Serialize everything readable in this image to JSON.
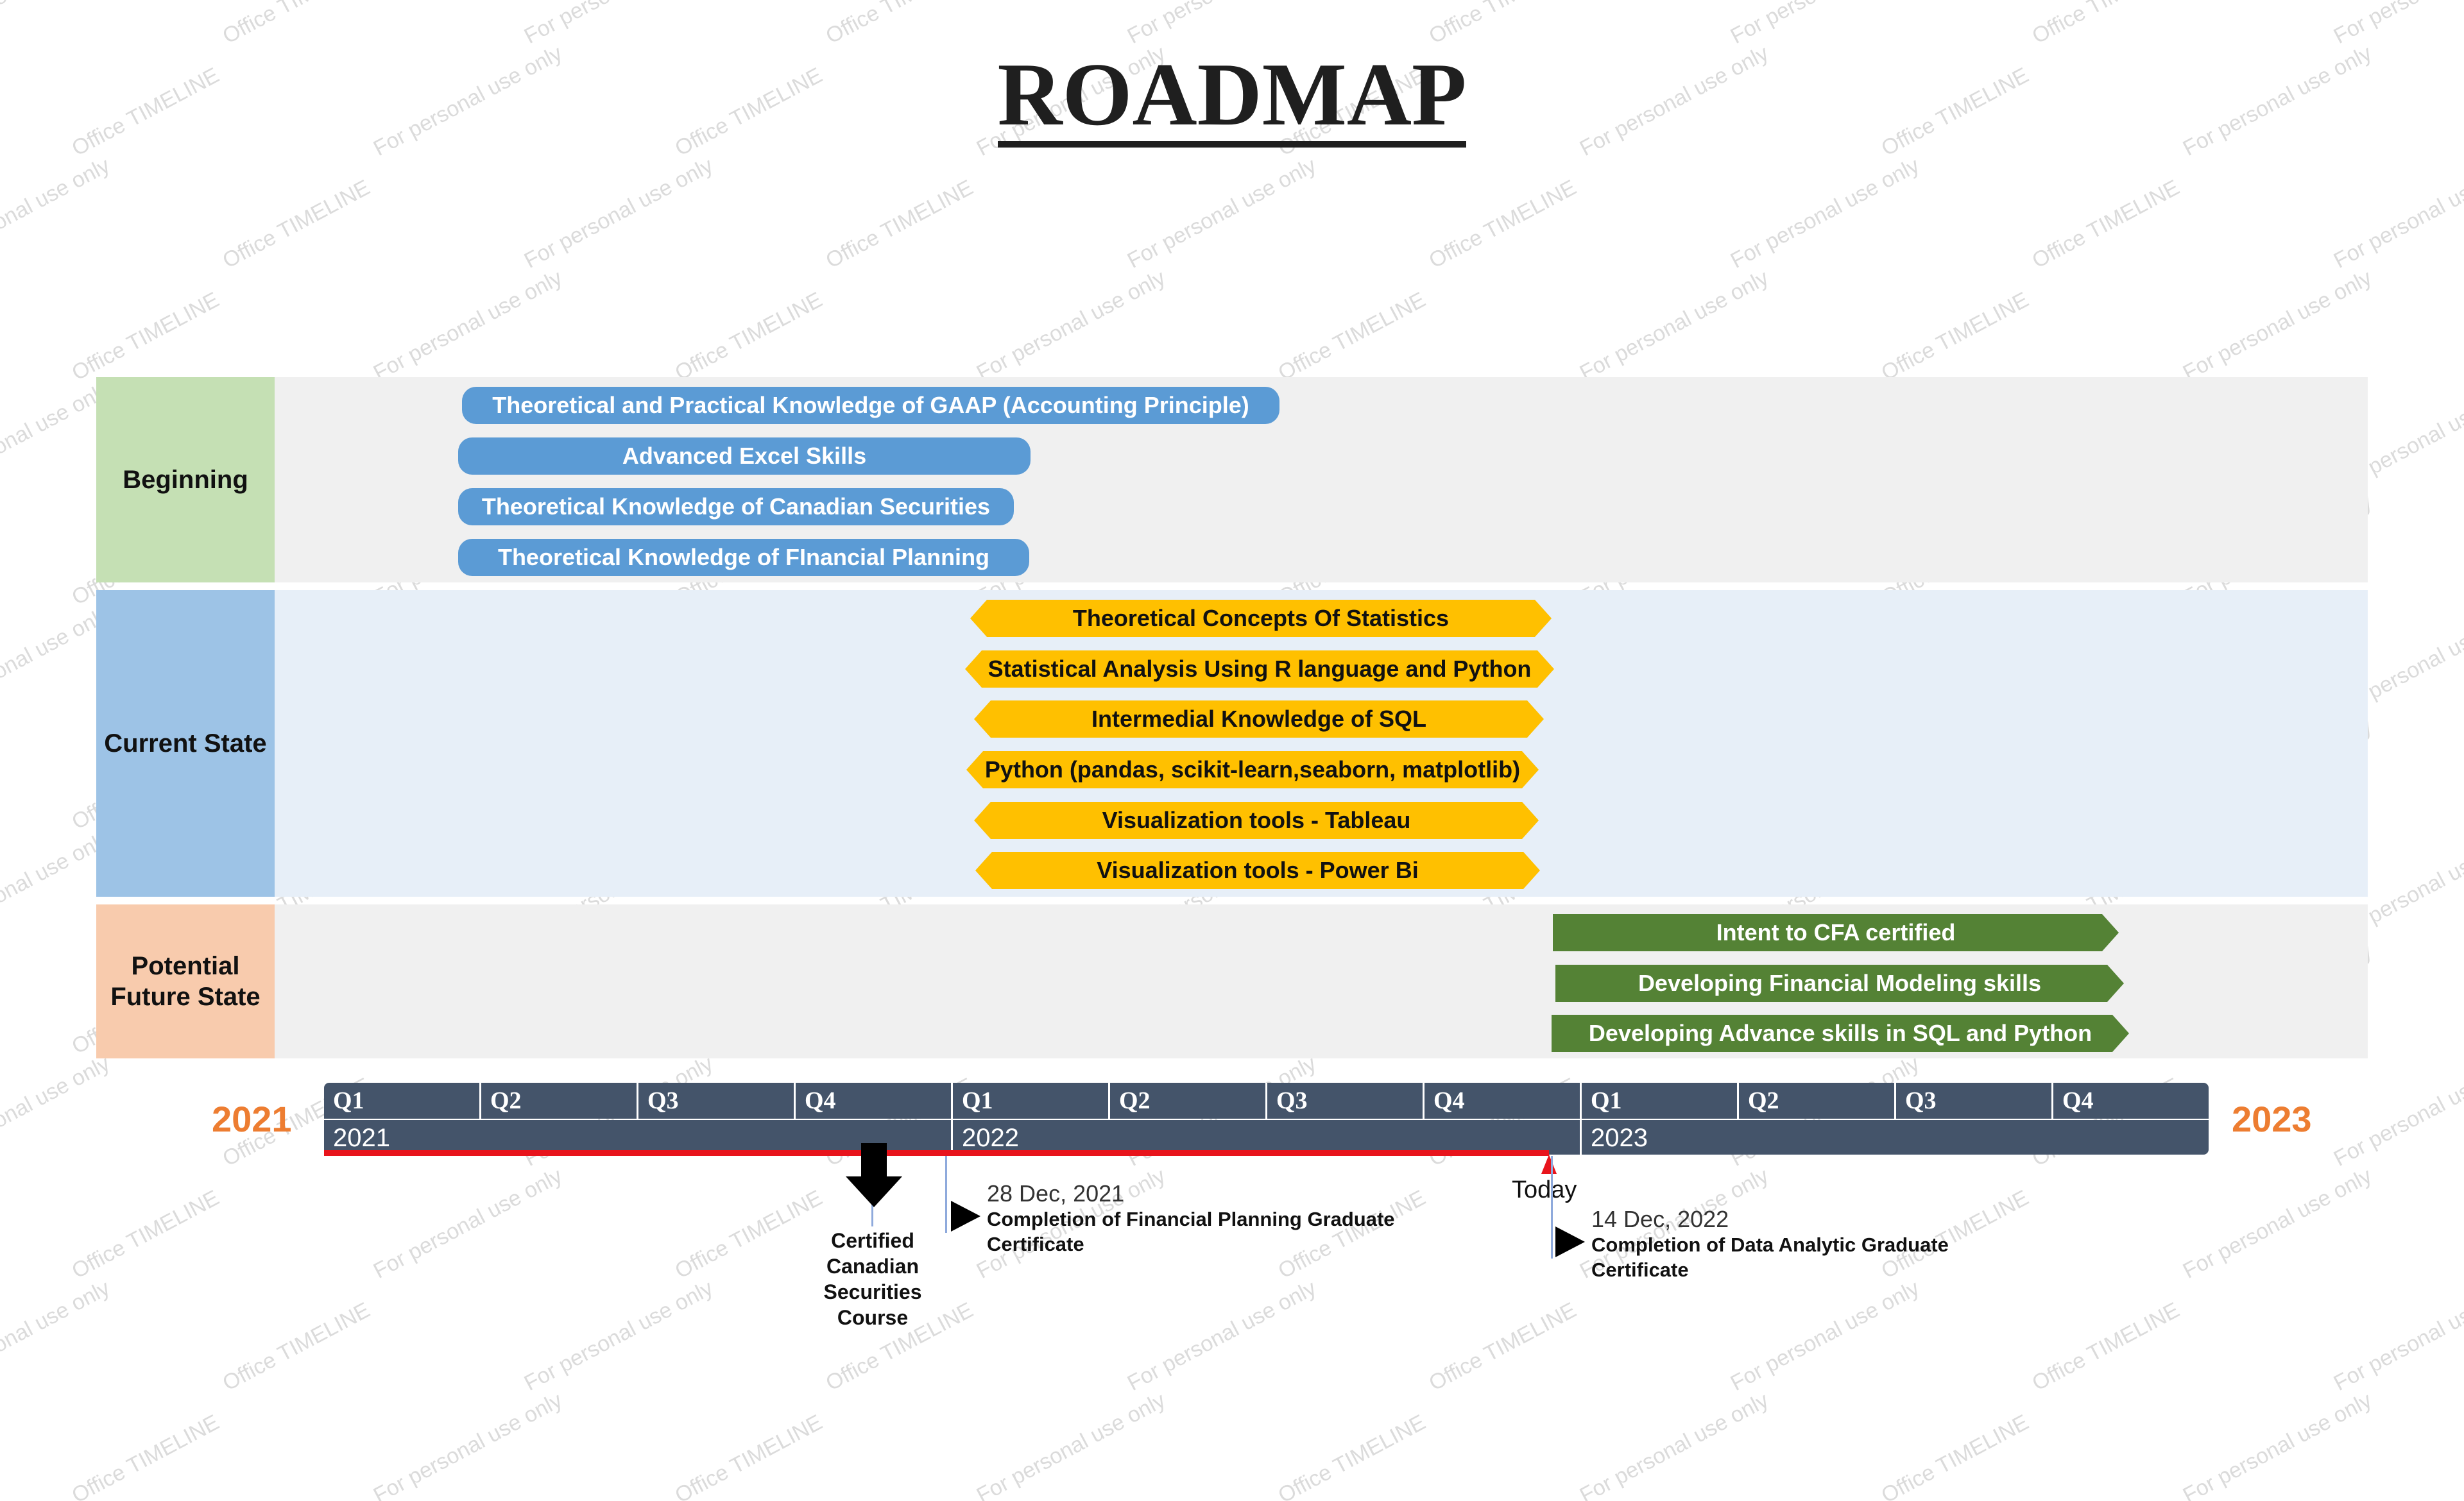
{
  "title": "ROADMAP",
  "watermark": [
    "For personal use only",
    "Office TIMELINE"
  ],
  "colors": {
    "beginning_label": "#c5e0b4",
    "current_label": "#9dc3e6",
    "future_label": "#f8cbad",
    "band_gray": "#f0f0f0",
    "band_blue": "#e7eff8",
    "task_blue": "#5b9bd5",
    "task_yellow": "#ffc000",
    "task_green": "#548235",
    "timeline": "#44546a",
    "elapsed": "#e8141c",
    "year_accent": "#ed7d31"
  },
  "swimlanes": [
    {
      "label": "Beginning",
      "tasks": [
        {
          "label": "Theoretical and Practical Knowledge of GAAP (Accounting Principle)"
        },
        {
          "label": "Advanced Excel Skills"
        },
        {
          "label": "Theoretical Knowledge of Canadian Securities"
        },
        {
          "label": "Theoretical Knowledge of FInancial Planning"
        }
      ]
    },
    {
      "label": "Current State",
      "tasks": [
        {
          "label": "Theoretical Concepts Of Statistics"
        },
        {
          "label": "Statistical Analysis Using R language and Python"
        },
        {
          "label": "Intermedial Knowledge of SQL"
        },
        {
          "label": "Python (pandas, scikit-learn,seaborn, matplotlib)"
        },
        {
          "label": "Visualization tools - Tableau"
        },
        {
          "label": "Visualization tools - Power Bi"
        }
      ]
    },
    {
      "label": "Potential\nFuture State",
      "tasks": [
        {
          "label": "Intent to CFA certified"
        },
        {
          "label": "Developing Financial Modeling skills"
        },
        {
          "label": "Developing Advance skills in SQL and Python"
        }
      ]
    }
  ],
  "timeline": {
    "start_year_label": "2021",
    "end_year_label": "2023",
    "quarters": [
      "Q1",
      "Q2",
      "Q3",
      "Q4",
      "Q1",
      "Q2",
      "Q3",
      "Q4",
      "Q1",
      "Q2",
      "Q3",
      "Q4"
    ],
    "years": [
      "2021",
      "2022",
      "2023"
    ],
    "today_label": "Today",
    "elapsed_fraction": 0.65
  },
  "milestones": [
    {
      "date": "",
      "text": "Certified\nCanadian\nSecurities\nCourse",
      "shape": "down-arrow-icon"
    },
    {
      "date": "28 Dec, 2021",
      "text": "Completion of Financial Planning Graduate\nCertificate",
      "shape": "triangle-right-icon"
    },
    {
      "date": "14 Dec, 2022",
      "text": "Completion of Data Analytic Graduate\nCertificate",
      "shape": "triangle-right-icon"
    }
  ]
}
